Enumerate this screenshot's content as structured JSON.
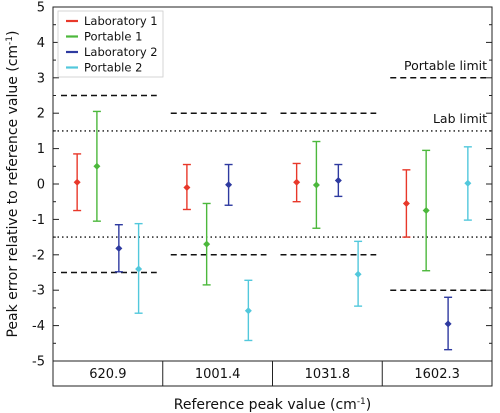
{
  "chart_data": {
    "type": "scatter",
    "xlabel": "Reference peak value (cm",
    "xlabel_sup": "-1",
    "xlabel_end": ")",
    "ylabel": "Peak error relative to reference value (cm",
    "ylabel_sup": "-1",
    "ylabel_end": ")",
    "ylim": [
      -5,
      5
    ],
    "yticks": [
      "5",
      "4",
      "3",
      "2",
      "1",
      "0",
      "-1",
      "-2",
      "-3",
      "-4",
      "-5"
    ],
    "categories": [
      "620.9",
      "1001.4",
      "1031.8",
      "1602.3"
    ],
    "legend_position": "top-left",
    "series": [
      {
        "name": "Laboratory 1",
        "color": "#e8382a",
        "values": [
          0.05,
          -0.1,
          0.05,
          -0.55
        ],
        "lower": [
          -0.75,
          -0.72,
          -0.5,
          -1.5
        ],
        "upper": [
          0.85,
          0.55,
          0.58,
          0.4
        ]
      },
      {
        "name": "Portable 1",
        "color": "#4cb83c",
        "values": [
          0.5,
          -1.7,
          -0.03,
          -0.75
        ],
        "lower": [
          -1.05,
          -2.85,
          -1.25,
          -2.45
        ],
        "upper": [
          2.05,
          -0.55,
          1.2,
          0.95
        ]
      },
      {
        "name": "Laboratory 2",
        "color": "#2e3aa0",
        "values": [
          -1.82,
          -0.02,
          0.1,
          -3.95
        ],
        "lower": [
          -2.48,
          -0.6,
          -0.35,
          -4.68
        ],
        "upper": [
          -1.15,
          0.55,
          0.55,
          -3.2
        ]
      },
      {
        "name": "Portable 2",
        "color": "#52c8dc",
        "values": [
          -2.4,
          -3.58,
          -2.55,
          0.02
        ],
        "lower": [
          -3.65,
          -4.42,
          -3.45,
          -1.02
        ],
        "upper": [
          -1.12,
          -2.72,
          -1.62,
          1.05
        ]
      }
    ],
    "portable_limit_dashes": [
      {
        "category": "620.9",
        "upper": 2.5,
        "lower": -2.5
      },
      {
        "category": "1001.4",
        "upper": 2.0,
        "lower": -2.0
      },
      {
        "category": "1031.8",
        "upper": 2.0,
        "lower": -2.0
      },
      {
        "category": "1602.3",
        "upper": 3.0,
        "lower": -3.0
      }
    ],
    "lab_limit": {
      "upper": 1.5,
      "lower": -1.5
    },
    "annotations": {
      "portable_limit": "Portable limit",
      "lab_limit": "Lab limit"
    }
  }
}
